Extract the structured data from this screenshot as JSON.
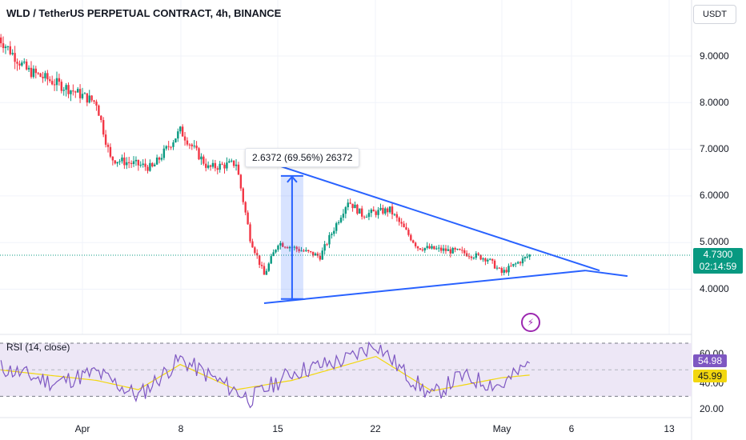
{
  "header": {
    "title": "WLD / TetherUS PERPETUAL CONTRACT, 4h, BINANCE",
    "currency_button": "USDT"
  },
  "price_axis": {
    "labels": [
      "9.0000",
      "8.0000",
      "7.0000",
      "6.0000",
      "5.0000",
      "4.0000"
    ]
  },
  "current_price": {
    "price": "4.7300",
    "countdown": "02:14:59",
    "color": "#089981"
  },
  "measure": {
    "label": "2.6372 (69.56%) 26372",
    "from_price": 3.79,
    "to_price": 6.43,
    "color": "#2962ff"
  },
  "rsi": {
    "label": "RSI (14, close)",
    "value": "54.98",
    "ma_value": "45.99",
    "axis_labels": [
      "60.00",
      "40.00",
      "20.00"
    ],
    "line_color": "#7e57c2",
    "ma_color": "#f2d70f",
    "band_color": "#ede7f6"
  },
  "time_axis": {
    "labels": [
      "Apr",
      "8",
      "15",
      "22",
      "May",
      "6",
      "13"
    ]
  },
  "colors": {
    "up": "#089981",
    "down": "#f23645",
    "trendline": "#2962ff"
  },
  "chart_data": {
    "type": "candlestick",
    "title": "WLD / TetherUS PERPETUAL CONTRACT, 4h, BINANCE",
    "timeframe": "4h",
    "yaxis": "price (USDT)",
    "ylim": [
      3.4,
      9.8
    ],
    "rsi_ylim": [
      15,
      75
    ],
    "x_ticks": [
      "Apr",
      "8",
      "15",
      "22",
      "May",
      "6",
      "13"
    ],
    "series": [
      {
        "name": "WLD/USDT",
        "path_dates": [
          "Mar 26",
          "Mar 28",
          "Mar 31",
          "Apr 2",
          "Apr 3",
          "Apr 6",
          "Apr 8",
          "Apr 10",
          "Apr 12",
          "Apr 13",
          "Apr 14",
          "Apr 15",
          "Apr 18",
          "Apr 20",
          "Apr 21",
          "Apr 23",
          "Apr 25",
          "Apr 28",
          "Apr 30",
          "May 1",
          "May 3"
        ],
        "path_values": [
          9.4,
          8.7,
          8.3,
          8.0,
          6.8,
          6.6,
          7.4,
          6.6,
          6.7,
          5.1,
          4.3,
          5.0,
          4.7,
          5.9,
          5.6,
          5.7,
          4.9,
          4.8,
          4.65,
          4.35,
          4.73
        ]
      },
      {
        "name": "RSI (14, close)",
        "path_dates": [
          "Mar 26",
          "Mar 30",
          "Apr 2",
          "Apr 5",
          "Apr 8",
          "Apr 11",
          "Apr 13",
          "Apr 16",
          "Apr 20",
          "Apr 22",
          "Apr 24",
          "Apr 26",
          "Apr 28",
          "May 1",
          "May 3"
        ],
        "path_values": [
          52,
          40,
          48,
          30,
          58,
          40,
          28,
          48,
          58,
          70,
          48,
          30,
          45,
          38,
          54.98
        ]
      },
      {
        "name": "RSI MA",
        "path_dates": [
          "Mar 26",
          "Apr 2",
          "Apr 5",
          "Apr 8",
          "Apr 12",
          "Apr 16",
          "Apr 22",
          "Apr 26",
          "May 1",
          "May 3"
        ],
        "path_values": [
          50,
          42,
          35,
          54,
          35,
          42,
          60,
          34,
          44,
          45.99
        ]
      }
    ],
    "triangle": {
      "upper_trendline": [
        {
          "date": "Apr 14",
          "price": 6.75
        },
        {
          "date": "May 8",
          "price": 4.4
        }
      ],
      "lower_trendline": [
        {
          "date": "Apr 14",
          "price": 3.7
        },
        {
          "date": "May 7",
          "price": 4.4
        }
      ],
      "extension": [
        {
          "date": "May 7",
          "price": 4.4
        },
        {
          "date": "May 10",
          "price": 4.28
        }
      ]
    },
    "measurement": {
      "from": 3.79,
      "to": 6.43,
      "change": "2.6372",
      "percent": "69.56%",
      "ticks": "26372"
    },
    "rsi_band": [
      30,
      70
    ],
    "rsi_midline": 50,
    "last_price": 4.73,
    "rsi_last": 54.98,
    "rsi_ma_last": 45.99
  }
}
